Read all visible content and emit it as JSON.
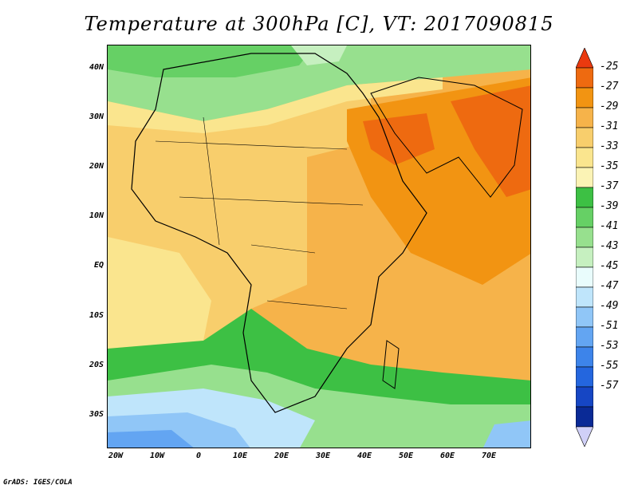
{
  "title": "Temperature at 300hPa [C], VT: 2017090815",
  "credit": "GrADS: IGES/COLA",
  "lat_labels": [
    "40N",
    "30N",
    "20N",
    "10N",
    "EQ",
    "10S",
    "20S",
    "30S"
  ],
  "lon_labels": [
    "20W",
    "10W",
    "0",
    "10E",
    "20E",
    "30E",
    "40E",
    "50E",
    "60E",
    "70E"
  ],
  "colorbar": {
    "labels": [
      "-25",
      "-27",
      "-29",
      "-31",
      "-33",
      "-35",
      "-37",
      "-39",
      "-41",
      "-43",
      "-45",
      "-47",
      "-49",
      "-51",
      "-53",
      "-55",
      "-57"
    ],
    "colors": [
      "#ea3a0f",
      "#ee6a10",
      "#f29412",
      "#f6b34a",
      "#f8ce6c",
      "#fae58e",
      "#fbf3b5",
      "#3dc044",
      "#66d065",
      "#97e08e",
      "#c6f0c0",
      "#e9fcfc",
      "#bfe5fb",
      "#90c6f7",
      "#63a5f2",
      "#3d84ea",
      "#2466de",
      "#1646c4",
      "#0a2a96",
      "#d0d0f8"
    ]
  },
  "map": {
    "region": "Africa and Middle East",
    "lon_range": [
      -20,
      80
    ],
    "lat_range": [
      -37,
      45
    ]
  }
}
